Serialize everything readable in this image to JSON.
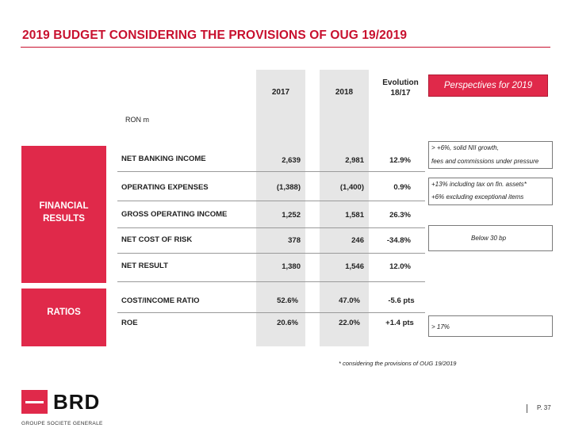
{
  "title": "2019 BUDGET CONSIDERING THE PROVISIONS OF OUG 19/2019",
  "unit": "RON m",
  "columns": {
    "y2017": "2017",
    "y2018": "2018",
    "evolution": [
      "Evolution",
      "18/17"
    ],
    "perspectives": "Perspectives for 2019"
  },
  "sections": {
    "financial": [
      "FINANCIAL",
      "RESULTS"
    ],
    "ratios": "RATIOS"
  },
  "rows": [
    {
      "label": "NET BANKING INCOME",
      "v2017": "2,639",
      "v2018": "2,981",
      "evo": "12.9%"
    },
    {
      "label": "OPERATING EXPENSES",
      "v2017": "(1,388)",
      "v2018": "(1,400)",
      "evo": "0.9%"
    },
    {
      "label": "GROSS OPERATING INCOME",
      "v2017": "1,252",
      "v2018": "1,581",
      "evo": "26.3%"
    },
    {
      "label": "NET COST OF RISK",
      "v2017": "378",
      "v2018": "246",
      "evo": "-34.8%"
    },
    {
      "label": "NET RESULT",
      "v2017": "1,380",
      "v2018": "1,546",
      "evo": "12.0%"
    },
    {
      "label": "COST/INCOME RATIO",
      "v2017": "52.6%",
      "v2018": "47.0%",
      "evo": "-5.6 pts"
    },
    {
      "label": "ROE",
      "v2017": "20.6%",
      "v2018": "22.0%",
      "evo": "+1.4 pts"
    }
  ],
  "perspectives": {
    "nbi": [
      "> +6%, solid NII growth,",
      "fees and commissions under pressure"
    ],
    "opex": [
      "+13% including tax on fin. assets*",
      "+6% excluding exceptional items"
    ],
    "risk": "Below 30 bp",
    "roe": "> 17%"
  },
  "footnote": "* considering the provisions of OUG 19/2019",
  "logo": {
    "name": "BRD",
    "tagline": "GROUPE SOCIETE GENERALE"
  },
  "page": "P. 37",
  "colors": {
    "brand_red": "#e0294a",
    "title_red": "#c8102e",
    "column_grey": "#e6e6e6"
  }
}
